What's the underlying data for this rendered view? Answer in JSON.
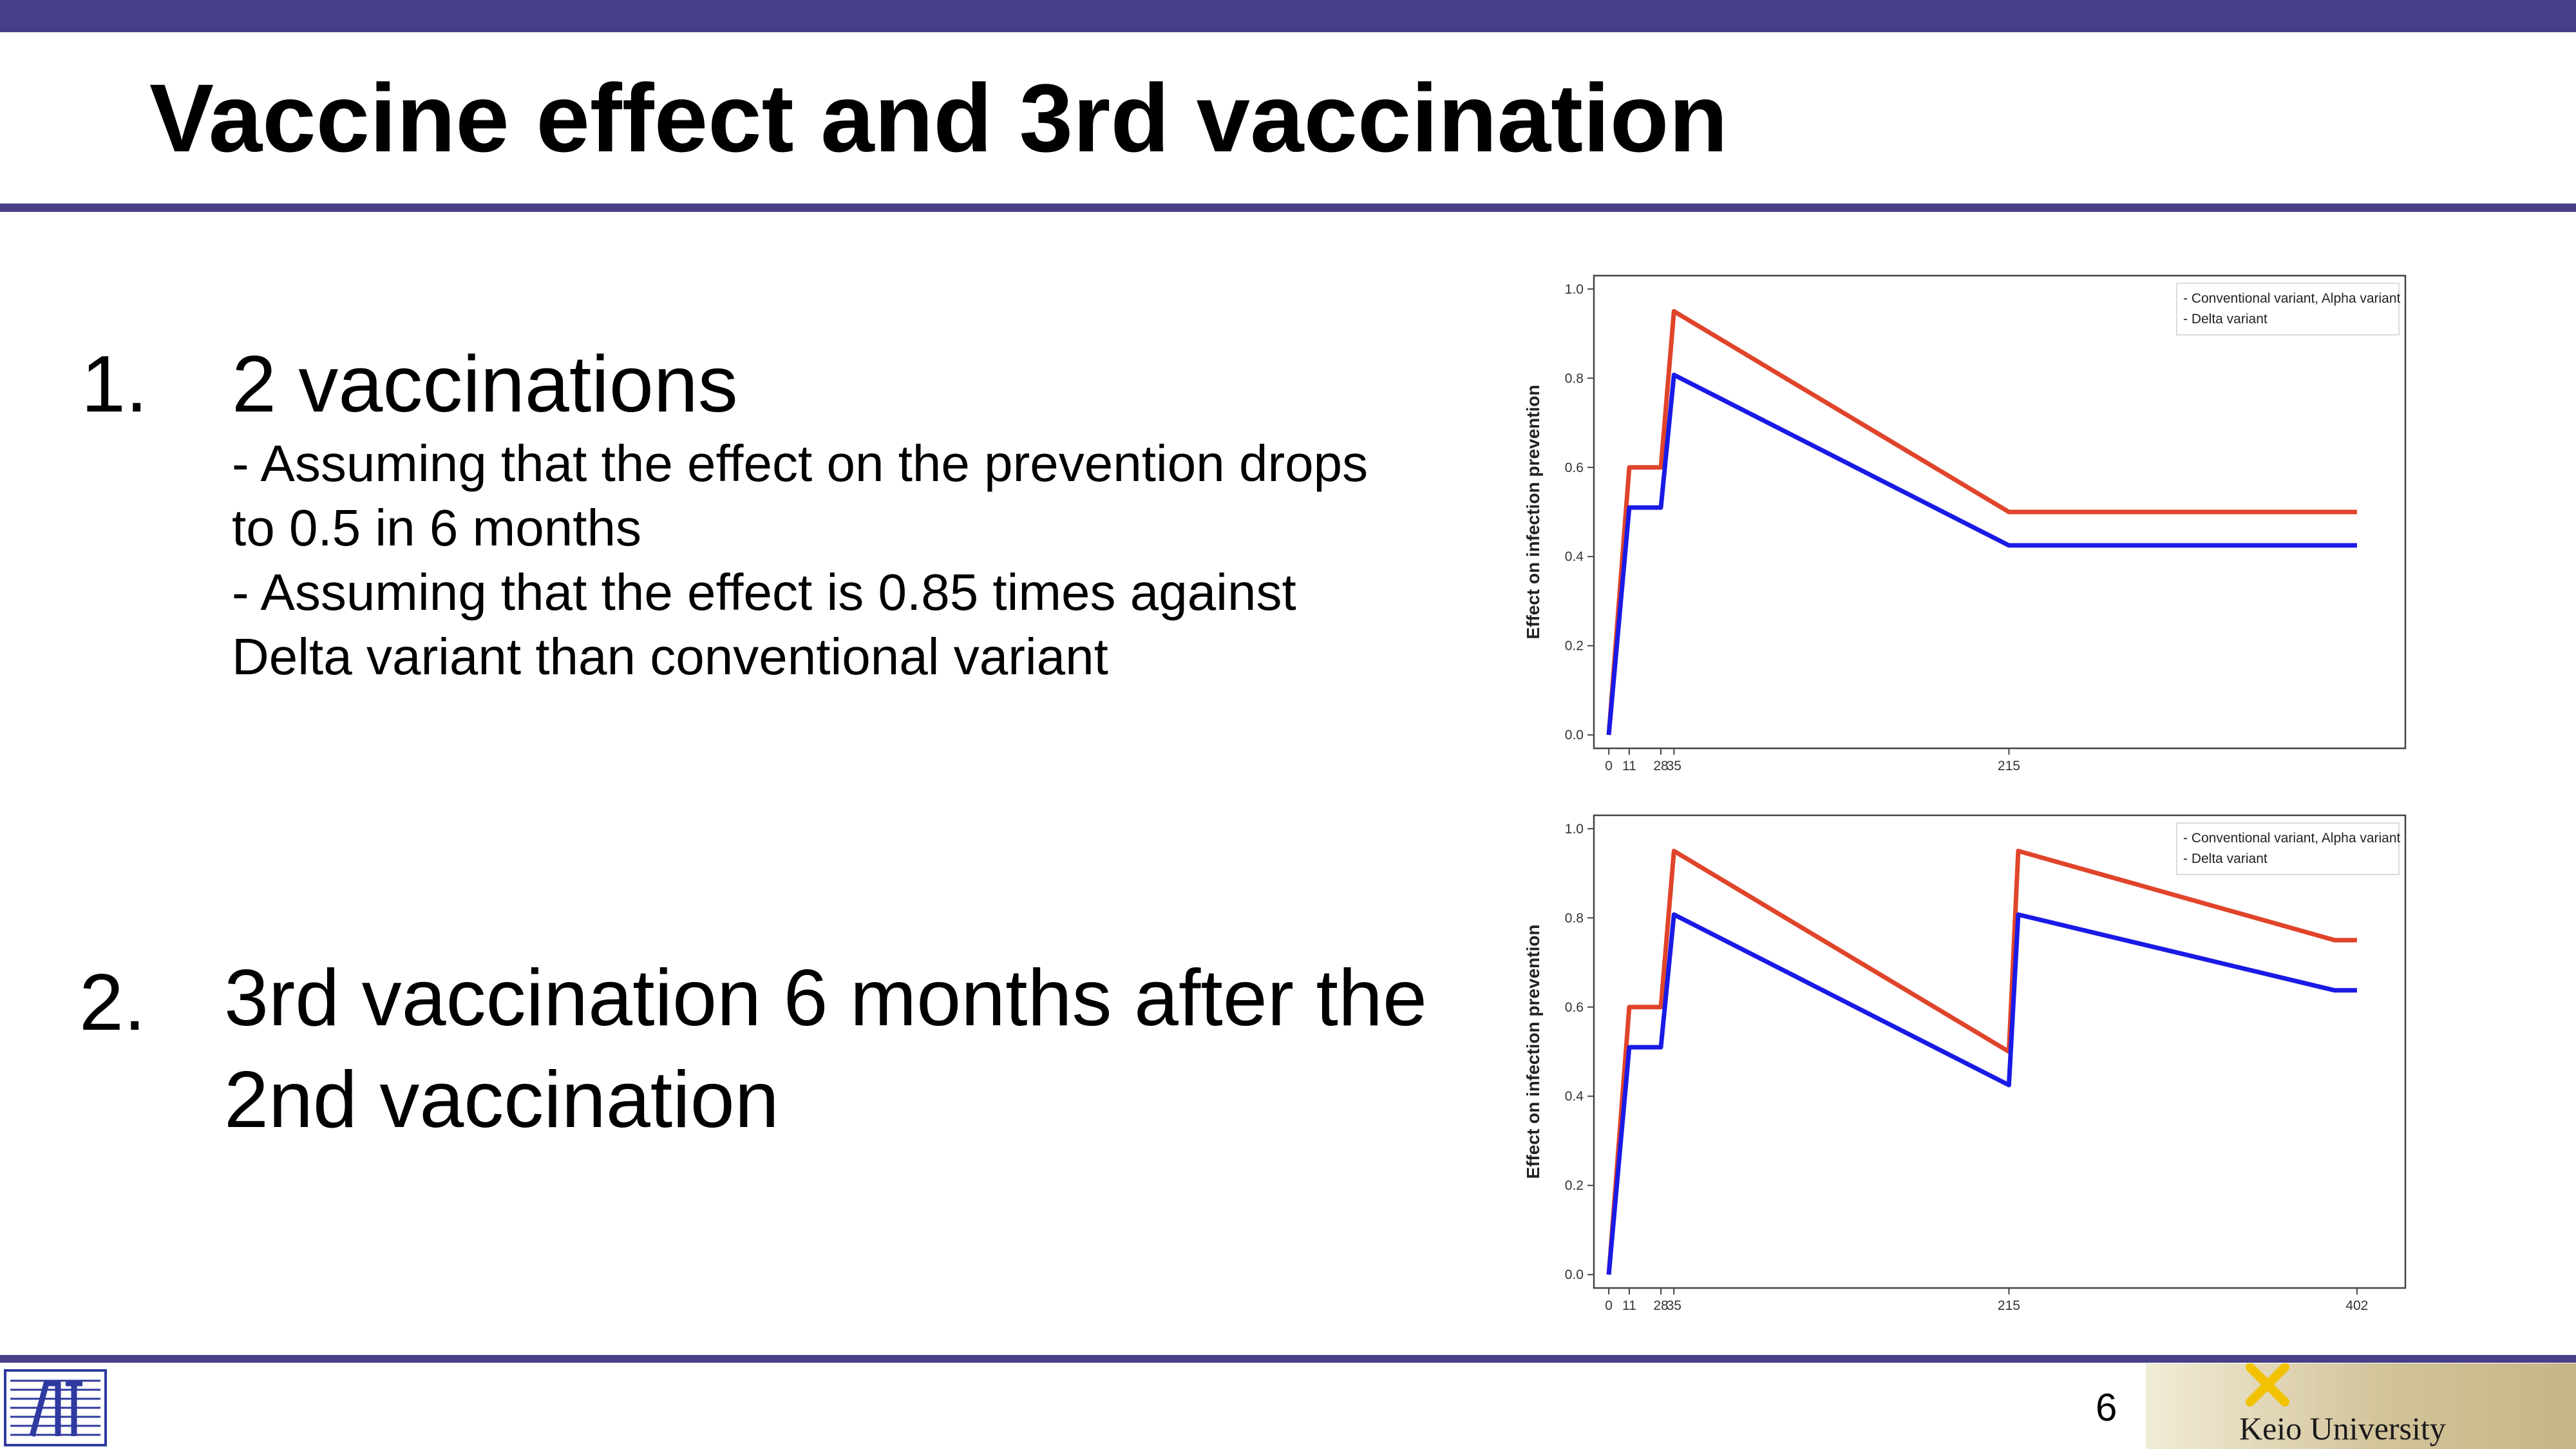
{
  "slide": {
    "title": "Vaccine effect and 3rd vaccination",
    "page_number": "6",
    "university": "Keio University"
  },
  "items": [
    {
      "number": "1.",
      "heading": "2 vaccinations",
      "notes": [
        "- Assuming that the effect on the prevention drops",
        "to 0.5 in 6 months",
        "- Assuming that the effect is 0.85 times against",
        "Delta variant than conventional variant"
      ]
    },
    {
      "number": "2.",
      "heading": "3rd vaccination 6 months after the 2nd vaccination"
    }
  ],
  "colors": {
    "brand": "#463f87",
    "conventional": "#e0442a",
    "delta": "#1a1ae6"
  },
  "chart_data": [
    {
      "type": "line",
      "ylabel": "Effect on infection prevention",
      "ylim": [
        0.0,
        1.0
      ],
      "yticks": [
        "0.0",
        "0.2",
        "0.4",
        "0.6",
        "0.8",
        "1.0"
      ],
      "xlim": [
        -8,
        428
      ],
      "xtick_values": [
        0,
        11,
        28,
        35,
        215
      ],
      "xtick_labels": [
        "0",
        "11",
        "28",
        "35",
        "215"
      ],
      "legend_position": "top-right",
      "grid": false,
      "series": [
        {
          "name": "Conventional variant, Alpha variant",
          "color": "#e0442a",
          "x": [
            0,
            11,
            11,
            28,
            28,
            35,
            215,
            402
          ],
          "y": [
            0.0,
            0.6,
            0.6,
            0.6,
            0.6,
            0.95,
            0.5,
            0.5
          ]
        },
        {
          "name": "Delta variant",
          "color": "#1a1ae6",
          "x": [
            0,
            11,
            11,
            28,
            28,
            35,
            215,
            402
          ],
          "y": [
            0.0,
            0.51,
            0.51,
            0.51,
            0.51,
            0.8075,
            0.425,
            0.425
          ]
        }
      ]
    },
    {
      "type": "line",
      "ylabel": "Effect on infection prevention",
      "ylim": [
        0.0,
        1.0
      ],
      "yticks": [
        "0.0",
        "0.2",
        "0.4",
        "0.6",
        "0.8",
        "1.0"
      ],
      "xlim": [
        -8,
        428
      ],
      "xtick_values": [
        0,
        11,
        28,
        35,
        215,
        402
      ],
      "xtick_labels": [
        "0",
        "11",
        "28",
        "35",
        "215",
        "402"
      ],
      "legend_position": "top-right",
      "grid": false,
      "series": [
        {
          "name": "Conventional variant, Alpha variant",
          "color": "#e0442a",
          "x": [
            0,
            11,
            11,
            28,
            28,
            35,
            215,
            220,
            390,
            402
          ],
          "y": [
            0.0,
            0.6,
            0.6,
            0.6,
            0.6,
            0.95,
            0.5,
            0.95,
            0.75,
            0.75
          ]
        },
        {
          "name": "Delta variant",
          "color": "#1a1ae6",
          "x": [
            0,
            11,
            11,
            28,
            28,
            35,
            215,
            220,
            390,
            402
          ],
          "y": [
            0.0,
            0.51,
            0.51,
            0.51,
            0.51,
            0.8075,
            0.425,
            0.8075,
            0.6375,
            0.6375
          ]
        }
      ]
    }
  ]
}
